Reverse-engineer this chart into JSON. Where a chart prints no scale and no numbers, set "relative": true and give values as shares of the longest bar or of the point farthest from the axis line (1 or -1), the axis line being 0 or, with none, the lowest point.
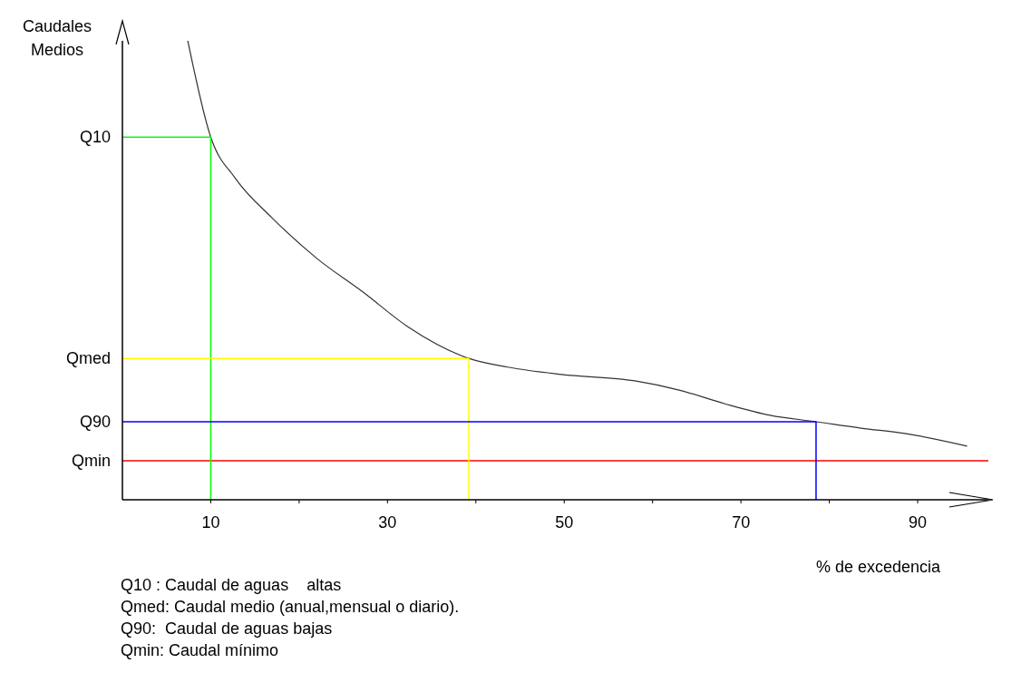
{
  "chart_data": {
    "type": "line",
    "relative": true,
    "xlabel": "% de excedencia",
    "ylabel": "Caudales\nMedios",
    "xlim": [
      0,
      98
    ],
    "xticks": [
      10,
      {
        "value": 20,
        "label": null
      },
      30,
      {
        "value": 40,
        "label": null
      },
      50,
      {
        "value": 60,
        "label": null
      },
      70,
      {
        "value": 80,
        "label": null
      },
      90
    ],
    "series": [
      {
        "color": "#333333",
        "x": [
          7.4,
          10,
          12.8,
          16.9,
          22,
          27.2,
          32.3,
          39.2,
          43.6,
          49.7,
          58,
          63,
          68.2,
          73.3,
          78.5,
          83.6,
          88.7,
          95.6
        ],
        "values": [
          1,
          0.79,
          0.7,
          0.615,
          0.526,
          0.453,
          0.377,
          0.308,
          0.289,
          0.273,
          0.259,
          0.239,
          0.209,
          0.184,
          0.17,
          0.156,
          0.144,
          0.117
        ]
      },
      {
        "name": "Q10",
        "color": "#00ff00",
        "x": [
          0,
          10,
          10
        ],
        "values": [
          0.79,
          0.79,
          0
        ]
      },
      {
        "name": "Qmed",
        "color": "#ffff00",
        "x": [
          0,
          39.2,
          39.2
        ],
        "values": [
          0.308,
          0.308,
          0
        ]
      },
      {
        "name": "Q90",
        "color": "#0000ff",
        "x": [
          0,
          78.5,
          78.5
        ],
        "values": [
          0.17,
          0.17,
          0
        ]
      }
    ],
    "ref_lines": [
      {
        "axis": "y",
        "value": 0.085,
        "label": "Qmin",
        "color": "#ff0000"
      }
    ],
    "annotations": [
      "Q10 : Caudal de aguas    altas",
      "Qmed: Caudal medio (anual,mensual o diario).",
      "Q90:  Caudal de aguas bajas",
      "Qmin: Caudal mínimo"
    ],
    "grid": false,
    "marker": "none",
    "line_style": "solid"
  }
}
